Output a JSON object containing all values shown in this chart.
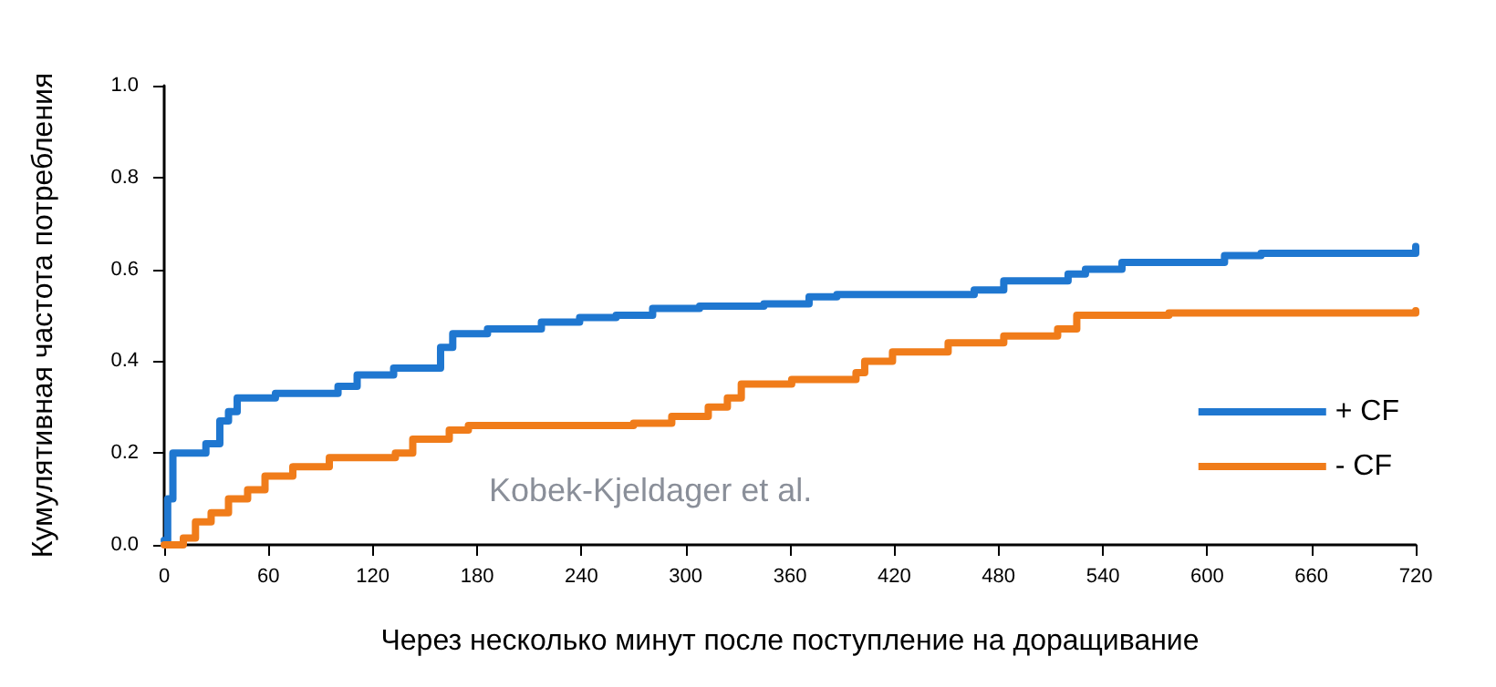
{
  "chart_data": {
    "type": "step",
    "xlabel": "Через несколько минут после поступление на доращивание",
    "ylabel": "Кумулятивная частота потребления",
    "xlim": [
      0,
      720
    ],
    "xticks": [
      0,
      60,
      120,
      180,
      240,
      300,
      360,
      420,
      480,
      540,
      600,
      660,
      720
    ],
    "ylim": [
      0,
      1
    ],
    "yticks": [
      {
        "value": 0,
        "label": "0.0"
      },
      {
        "value": 0.2,
        "label": "0.2"
      },
      {
        "value": 0.4,
        "label": "0.4"
      },
      {
        "value": 0.6,
        "label": "0.6"
      },
      {
        "value": 0.8,
        "label": "0.8"
      },
      {
        "value": 1,
        "label": "1.0"
      }
    ],
    "grid": false,
    "legend": "right",
    "marker": "none",
    "line_style": "solid",
    "annotations": [
      "Kobek-Kjeldager et al."
    ],
    "series": [
      {
        "name": "+ CF",
        "color": "#1f77d0",
        "x": [
          0,
          2,
          5,
          16,
          24,
          32,
          37,
          42,
          64,
          92,
          100,
          111,
          132,
          154,
          159,
          166,
          186,
          205,
          217,
          239,
          260,
          281,
          308,
          345,
          371,
          387,
          466,
          483,
          514,
          520,
          530,
          551,
          610,
          631,
          720
        ],
        "values": [
          0.01,
          0.1,
          0.2,
          0.2,
          0.22,
          0.27,
          0.29,
          0.32,
          0.33,
          0.33,
          0.345,
          0.37,
          0.385,
          0.385,
          0.43,
          0.46,
          0.47,
          0.47,
          0.485,
          0.495,
          0.5,
          0.515,
          0.52,
          0.525,
          0.54,
          0.545,
          0.555,
          0.575,
          0.575,
          0.59,
          0.6,
          0.615,
          0.63,
          0.635,
          0.65
        ]
      },
      {
        "name": "- CF",
        "color": "#f07c1a",
        "x": [
          0,
          11,
          18,
          27,
          37,
          48,
          58,
          74,
          95,
          133,
          143,
          164,
          175,
          270,
          292,
          313,
          324,
          332,
          361,
          398,
          403,
          419,
          451,
          483,
          514,
          525,
          578,
          720
        ],
        "values": [
          0,
          0.015,
          0.05,
          0.07,
          0.1,
          0.12,
          0.15,
          0.17,
          0.19,
          0.2,
          0.23,
          0.25,
          0.26,
          0.265,
          0.28,
          0.3,
          0.32,
          0.35,
          0.36,
          0.375,
          0.4,
          0.42,
          0.44,
          0.455,
          0.47,
          0.5,
          0.505,
          0.51
        ]
      }
    ]
  }
}
